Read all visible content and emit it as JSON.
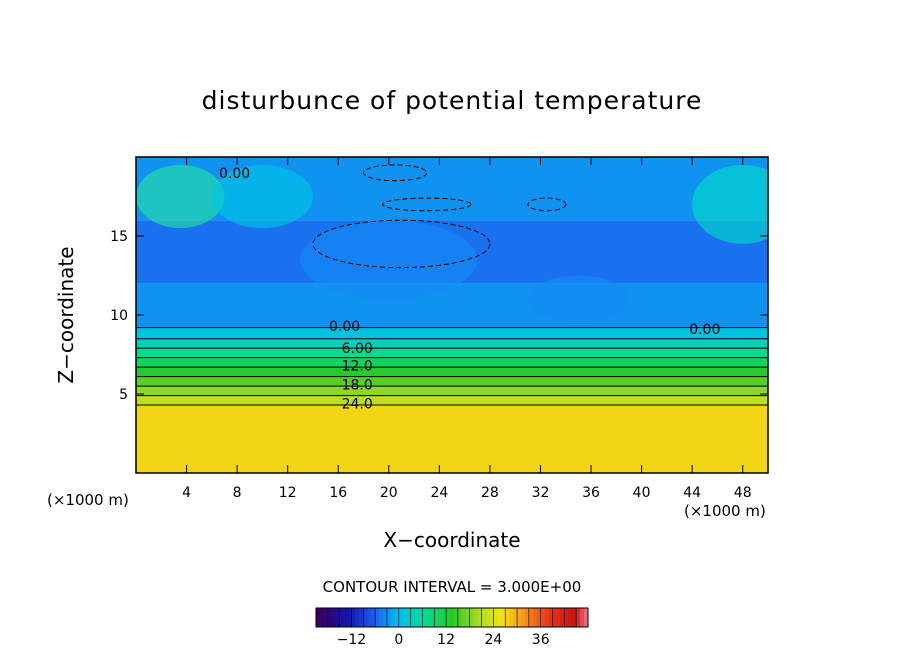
{
  "chart_data": {
    "type": "heatmap",
    "title": "disturbunce of potential temperature",
    "xlabel": "X−coordinate",
    "ylabel": "Z−coordinate",
    "x_unit_label": "(×1000 m)",
    "contour_interval_text": "CONTOUR INTERVAL = 3.000E+00",
    "xlim": [
      0,
      50
    ],
    "ylim": [
      0,
      20
    ],
    "xticks": [
      4,
      8,
      12,
      16,
      20,
      24,
      28,
      32,
      36,
      40,
      44,
      48
    ],
    "yticks": [
      5,
      10,
      15
    ],
    "colorbar": {
      "range": [
        -21,
        48
      ],
      "ticks": [
        "−12",
        "0",
        "12",
        "24",
        "36"
      ],
      "tick_values": [
        -12,
        0,
        12,
        24,
        36
      ]
    },
    "contour_labels": [
      {
        "text": "0.00",
        "x": 7.8,
        "z": 19.0
      },
      {
        "text": "0.00",
        "x": 16.5,
        "z": 9.3
      },
      {
        "text": "6.00",
        "x": 17.5,
        "z": 7.9
      },
      {
        "text": "12.0",
        "x": 17.5,
        "z": 6.8
      },
      {
        "text": "18.0",
        "x": 17.5,
        "z": 5.6
      },
      {
        "text": "24.0",
        "x": 17.5,
        "z": 4.4
      },
      {
        "text": "0.00",
        "x": 45.0,
        "z": 9.1
      }
    ],
    "bands": [
      {
        "z0": 0,
        "z1": 4.3,
        "value": 27
      },
      {
        "z0": 4.3,
        "z1": 4.9,
        "value": 22
      },
      {
        "z0": 4.9,
        "z1": 5.5,
        "value": 19
      },
      {
        "z0": 5.5,
        "z1": 6.1,
        "value": 16
      },
      {
        "z0": 6.1,
        "z1": 6.7,
        "value": 13
      },
      {
        "z0": 6.7,
        "z1": 7.3,
        "value": 10
      },
      {
        "z0": 7.3,
        "z1": 7.9,
        "value": 7
      },
      {
        "z0": 7.9,
        "z1": 8.5,
        "value": 4
      },
      {
        "z0": 8.5,
        "z1": 9.2,
        "value": 1
      },
      {
        "z0": 9.2,
        "z1": 12.0,
        "value": -3
      },
      {
        "z0": 12.0,
        "z1": 16.0,
        "value": -5
      },
      {
        "z0": 16.0,
        "z1": 20.0,
        "value": -3
      }
    ]
  }
}
